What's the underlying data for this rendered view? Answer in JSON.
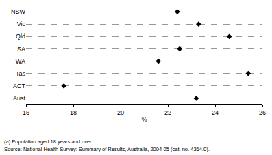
{
  "chart_data": {
    "type": "scatter",
    "orientation": "horizontal",
    "marker": "diamond",
    "color": "#000000",
    "categories": [
      "NSW",
      "Vic",
      "Qld",
      "SA",
      "WA",
      "Tas",
      "ACT",
      "Aust"
    ],
    "values": [
      22.4,
      23.3,
      24.6,
      22.5,
      21.6,
      25.4,
      17.6,
      23.2
    ],
    "xlabel": "%",
    "xlim": [
      16,
      26
    ],
    "xticks": [
      16,
      18,
      20,
      22,
      24,
      26
    ],
    "grid": true,
    "annotations": [
      "(a) Population aged 18 years and over",
      "Source: National Health Survey: Summary of Results, Australia, 2004-05 (cat. no. 4364.0)."
    ]
  }
}
